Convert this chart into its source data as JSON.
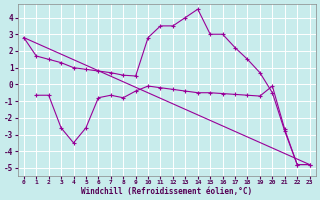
{
  "xlabel": "Windchill (Refroidissement éolien,°C)",
  "background_color": "#c8ecec",
  "grid_color": "#ffffff",
  "line_color": "#990099",
  "xlim": [
    -0.5,
    23.5
  ],
  "ylim": [
    -5.5,
    4.8
  ],
  "yticks": [
    -5,
    -4,
    -3,
    -2,
    -1,
    0,
    1,
    2,
    3,
    4
  ],
  "xticks": [
    0,
    1,
    2,
    3,
    4,
    5,
    6,
    7,
    8,
    9,
    10,
    11,
    12,
    13,
    14,
    15,
    16,
    17,
    18,
    19,
    20,
    21,
    22,
    23
  ],
  "series": [
    {
      "x": [
        0,
        1,
        2,
        3,
        4,
        5,
        6,
        7,
        8,
        9,
        10,
        11,
        12,
        13,
        14,
        15,
        16,
        17,
        18,
        19,
        20,
        21,
        22,
        23
      ],
      "y": [
        2.8,
        1.7,
        1.5,
        1.3,
        1.0,
        0.9,
        0.8,
        0.7,
        0.55,
        0.5,
        2.8,
        3.5,
        3.5,
        4.0,
        4.5,
        3.0,
        3.0,
        2.2,
        1.5,
        0.7,
        -0.5,
        -2.8,
        -4.8,
        -4.8
      ]
    },
    {
      "x": [
        1,
        2,
        3,
        4,
        5,
        6,
        7,
        8,
        9,
        10,
        11,
        12,
        13,
        14,
        15,
        16,
        17,
        18,
        19,
        20,
        21,
        22,
        23
      ],
      "y": [
        -0.65,
        -0.65,
        -2.6,
        -3.5,
        -2.6,
        -0.8,
        -0.65,
        -0.8,
        -0.4,
        -0.1,
        -0.2,
        -0.3,
        -0.4,
        -0.5,
        -0.5,
        -0.55,
        -0.6,
        -0.65,
        -0.7,
        -0.1,
        -2.7,
        -4.8,
        -4.8
      ]
    },
    {
      "x": [
        0,
        23
      ],
      "y": [
        2.8,
        -4.8
      ]
    }
  ]
}
